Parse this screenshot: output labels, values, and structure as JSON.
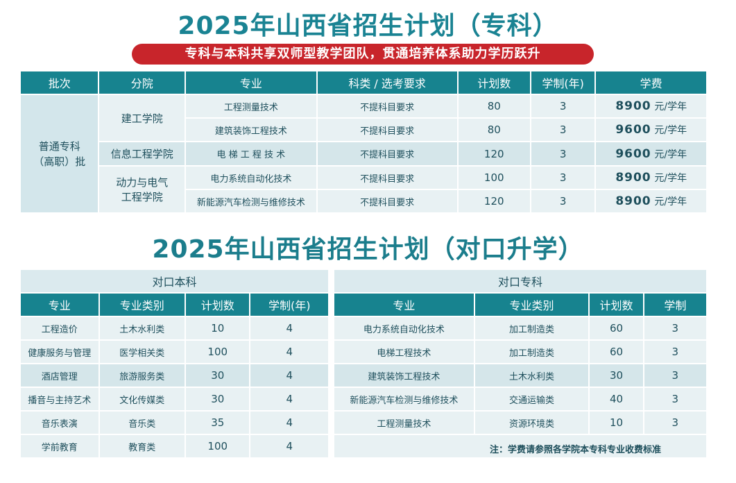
{
  "title_zhuanke": "2025年山西省招生计划（专科）",
  "banner": "专科与本科共享双师型教学团队，贯通培养体系助力学历跃升",
  "zhuanke": {
    "headers": [
      "批次",
      "分院",
      "专业",
      "科类 / 选考要求",
      "计划数",
      "学制(年)",
      "学费"
    ],
    "batch_line1": "普通专科",
    "batch_line2": "（高职）批",
    "colleges": [
      "建工学院",
      "信息工程学院",
      "动力与电气",
      "工程学院"
    ],
    "rows": [
      {
        "major": "工程测量技术",
        "req": "不提科目要求",
        "plan": "80",
        "years": "3",
        "fee": "8900",
        "unit": "元/学年"
      },
      {
        "major": "建筑装饰工程技术",
        "req": "不提科目要求",
        "plan": "80",
        "years": "3",
        "fee": "9600",
        "unit": "元/学年"
      },
      {
        "major": "电 梯 工 程 技 术",
        "req": "不提科目要求",
        "plan": "120",
        "years": "3",
        "fee": "9600",
        "unit": "元/学年"
      },
      {
        "major": "电力系统自动化技术",
        "req": "不提科目要求",
        "plan": "100",
        "years": "3",
        "fee": "8900",
        "unit": "元/学年"
      },
      {
        "major": "新能源汽车检测与维修技术",
        "req": "不提科目要求",
        "plan": "120",
        "years": "3",
        "fee": "8900",
        "unit": "元/学年"
      }
    ]
  },
  "title_duikou": "2025年山西省招生计划（对口升学）",
  "benke": {
    "section": "对口本科",
    "headers": [
      "专业",
      "专业类别",
      "计划数",
      "学制(年)"
    ],
    "rows": [
      {
        "major": "工程造价",
        "cat": "土木水利类",
        "plan": "10",
        "years": "4"
      },
      {
        "major": "健康服务与管理",
        "cat": "医学相关类",
        "plan": "100",
        "years": "4"
      },
      {
        "major": "酒店管理",
        "cat": "旅游服务类",
        "plan": "30",
        "years": "4"
      },
      {
        "major": "播音与主持艺术",
        "cat": "文化传媒类",
        "plan": "30",
        "years": "4"
      },
      {
        "major": "音乐表演",
        "cat": "音乐类",
        "plan": "35",
        "years": "4"
      },
      {
        "major": "学前教育",
        "cat": "教育类",
        "plan": "100",
        "years": "4"
      }
    ]
  },
  "zhuanke2": {
    "section": "对口专科",
    "headers": [
      "专业",
      "专业类别",
      "计划数",
      "学制"
    ],
    "rows": [
      {
        "major": "电力系统自动化技术",
        "cat": "加工制造类",
        "plan": "60",
        "years": "3"
      },
      {
        "major": "电梯工程技术",
        "cat": "加工制造类",
        "plan": "60",
        "years": "3"
      },
      {
        "major": "建筑装饰工程技术",
        "cat": "土木水利类",
        "plan": "30",
        "years": "3"
      },
      {
        "major": "新能源汽车检测与维修技术",
        "cat": "交通运输类",
        "plan": "40",
        "years": "3"
      },
      {
        "major": "工程测量技术",
        "cat": "资源环境类",
        "plan": "10",
        "years": "3"
      }
    ]
  },
  "note": "注：学费请参照各学院本专科专业收费标准"
}
